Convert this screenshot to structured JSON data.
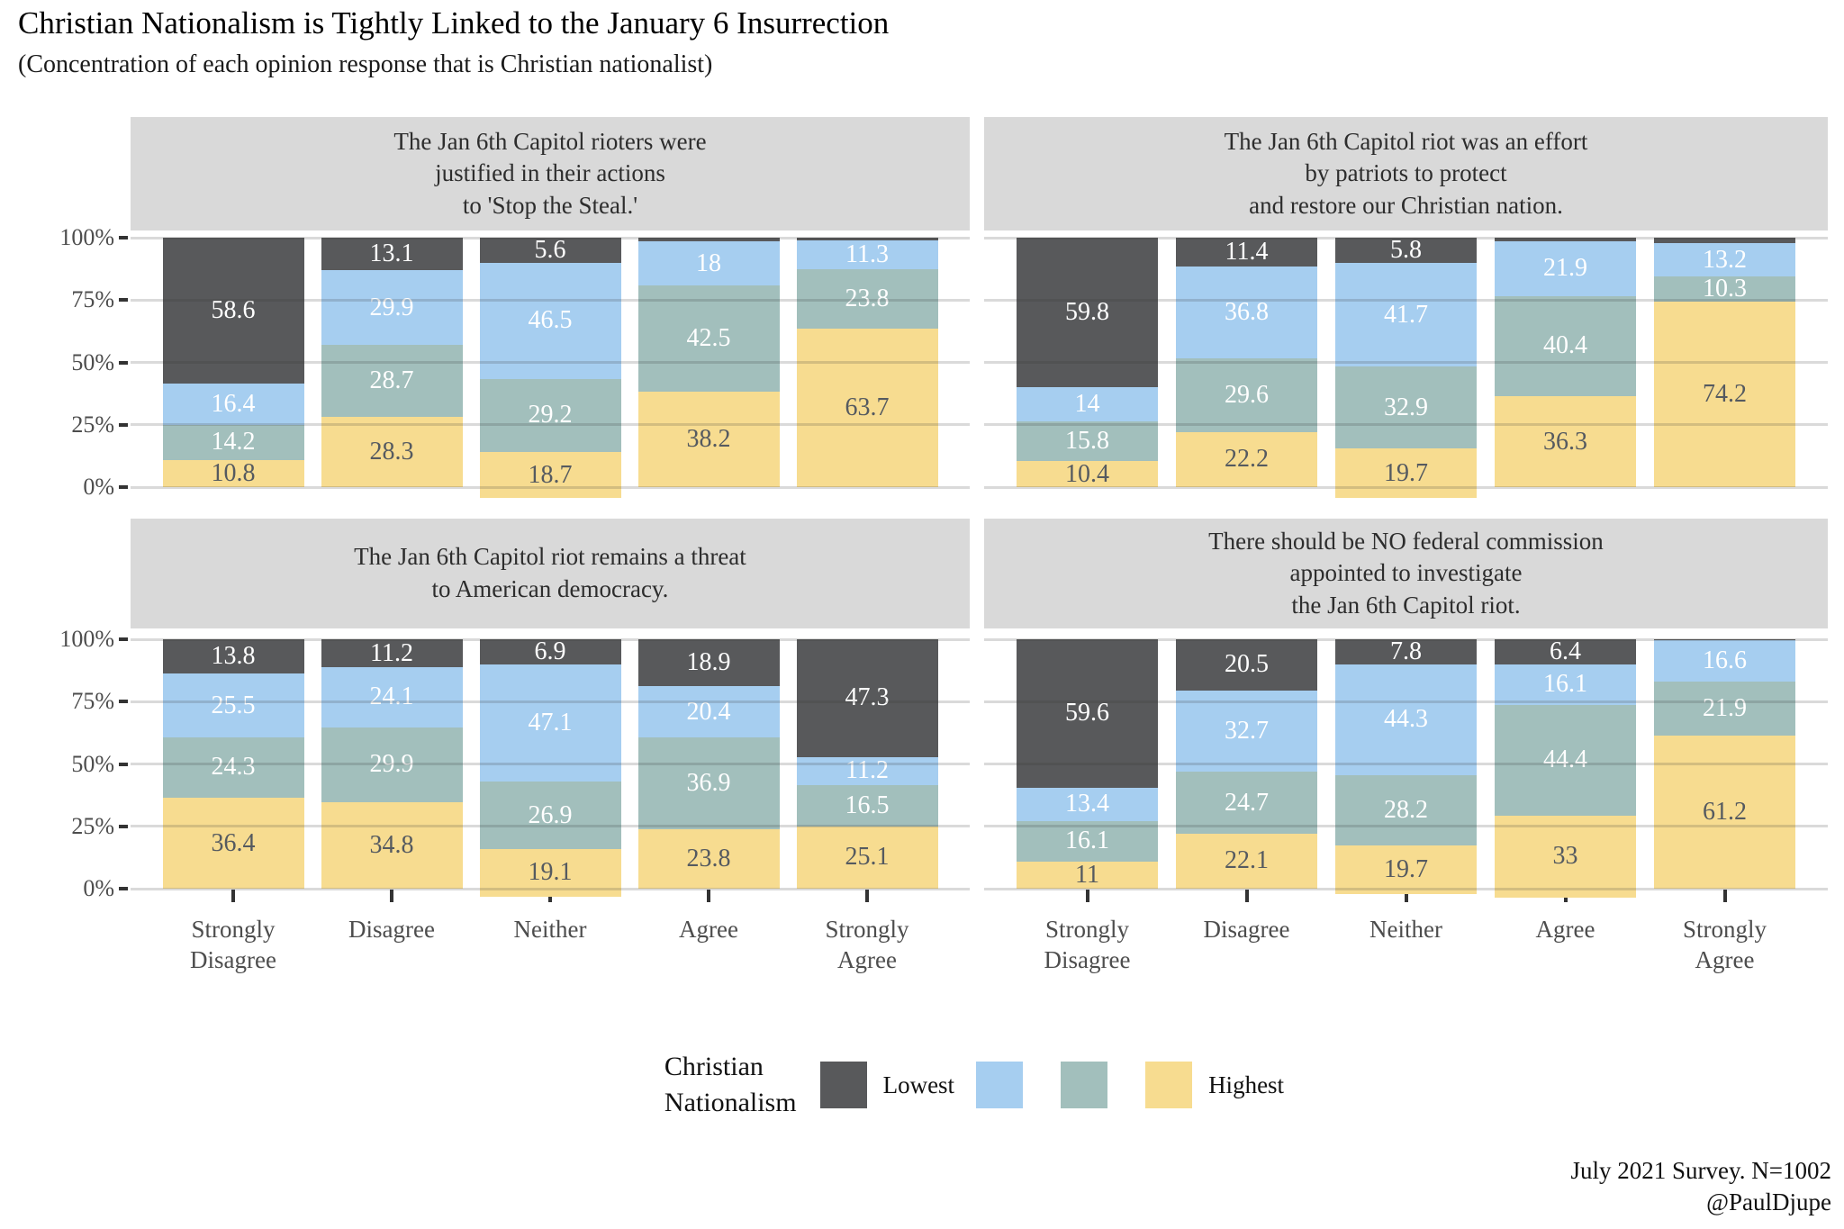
{
  "page": {
    "title": "Christian Nationalism is Tightly Linked to the January 6 Insurrection",
    "subtitle": "(Concentration of each opinion response that is Christian nationalist)",
    "caption_line1": "July 2021 Survey. N=1002",
    "caption_line2": "@PaulDjupe"
  },
  "legend": {
    "title": "Christian\nNationalism",
    "items": [
      {
        "label": "Lowest",
        "color": "#58595B"
      },
      {
        "label": "",
        "color": "#A6CEF0"
      },
      {
        "label": "",
        "color": "#A2BFBC"
      },
      {
        "label": "Highest",
        "color": "#F7DC90"
      }
    ]
  },
  "chart_data": {
    "type": "bar",
    "stacked": true,
    "unit": "percent of each opinion response",
    "ylim": [
      0,
      100
    ],
    "grid": "horizontal",
    "y_tick_values": [
      0,
      25,
      50,
      75,
      100
    ],
    "y_tick_labels": [
      "0%",
      "25%",
      "50%",
      "75%",
      "100%"
    ],
    "categories": [
      "Strongly\nDisagree",
      "Disagree",
      "Neither",
      "Agree",
      "Strongly\nAgree"
    ],
    "legend_title": "Christian Nationalism",
    "series": [
      {
        "name": "Lowest",
        "color": "#58595B",
        "label_color": "#FFFFFF"
      },
      {
        "name": "",
        "color": "#A6CEF0",
        "label_color": "#FFFFFF"
      },
      {
        "name": "",
        "color": "#A2BFBC",
        "label_color": "#FFFFFF"
      },
      {
        "name": "Highest",
        "color": "#F7DC90",
        "label_color": "#555A60"
      }
    ],
    "stack_order_note": "segments listed top-to-bottom: Lowest, second, third, Highest",
    "panels": [
      {
        "title": "The Jan 6th Capitol rioters were\njustified in their actions\nto 'Stop the Steal.'",
        "values": [
          [
            58.6,
            16.4,
            14.2,
            10.8
          ],
          [
            13.1,
            29.9,
            28.7,
            28.3
          ],
          [
            5.6,
            46.5,
            29.2,
            18.7
          ],
          [
            1.3,
            18,
            42.5,
            38.2
          ],
          [
            1.2,
            11.3,
            23.8,
            63.7
          ]
        ],
        "labels": [
          [
            "58.6",
            "16.4",
            "14.2",
            "10.8"
          ],
          [
            "13.1",
            "29.9",
            "28.7",
            "28.3"
          ],
          [
            "5.6",
            "46.5",
            "29.2",
            "18.7"
          ],
          [
            "",
            "18",
            "42.5",
            "38.2"
          ],
          [
            "",
            "11.3",
            "23.8",
            "63.7"
          ]
        ]
      },
      {
        "title": "The Jan 6th Capitol riot was an effort\nby patriots to protect\nand restore our Christian nation.",
        "values": [
          [
            59.8,
            14,
            15.8,
            10.4
          ],
          [
            11.4,
            36.8,
            29.6,
            22.2
          ],
          [
            5.8,
            41.7,
            32.9,
            19.7
          ],
          [
            1.4,
            21.9,
            40.4,
            36.3
          ],
          [
            2.3,
            13.2,
            10.3,
            74.2
          ]
        ],
        "labels": [
          [
            "59.8",
            "14",
            "15.8",
            "10.4"
          ],
          [
            "11.4",
            "36.8",
            "29.6",
            "22.2"
          ],
          [
            "5.8",
            "41.7",
            "32.9",
            "19.7"
          ],
          [
            "",
            "21.9",
            "40.4",
            "36.3"
          ],
          [
            "",
            "13.2",
            "10.3",
            "74.2"
          ]
        ]
      },
      {
        "title": "The Jan 6th Capitol riot remains a threat\nto American democracy.",
        "values": [
          [
            13.8,
            25.5,
            24.3,
            36.4
          ],
          [
            11.2,
            24.1,
            29.9,
            34.8
          ],
          [
            6.9,
            47.1,
            26.9,
            19.1
          ],
          [
            18.9,
            20.4,
            36.9,
            23.8
          ],
          [
            47.3,
            11.2,
            16.5,
            25.1
          ]
        ],
        "labels": [
          [
            "13.8",
            "25.5",
            "24.3",
            "36.4"
          ],
          [
            "11.2",
            "24.1",
            "29.9",
            "34.8"
          ],
          [
            "6.9",
            "47.1",
            "26.9",
            "19.1"
          ],
          [
            "18.9",
            "20.4",
            "36.9",
            "23.8"
          ],
          [
            "47.3",
            "11.2",
            "16.5",
            "25.1"
          ]
        ]
      },
      {
        "title": "There should be NO federal commission\nappointed to investigate\nthe Jan 6th Capitol riot.",
        "values": [
          [
            59.6,
            13.4,
            16.1,
            11
          ],
          [
            20.5,
            32.7,
            24.7,
            22.1
          ],
          [
            7.8,
            44.3,
            28.2,
            19.7
          ],
          [
            6.4,
            16.1,
            44.4,
            33
          ],
          [
            0.3,
            16.6,
            21.9,
            61.2
          ]
        ],
        "labels": [
          [
            "59.6",
            "13.4",
            "16.1",
            "11"
          ],
          [
            "20.5",
            "32.7",
            "24.7",
            "22.1"
          ],
          [
            "7.8",
            "44.3",
            "28.2",
            "19.7"
          ],
          [
            "6.4",
            "16.1",
            "44.4",
            "33"
          ],
          [
            "",
            "16.6",
            "21.9",
            "61.2"
          ]
        ]
      }
    ]
  }
}
